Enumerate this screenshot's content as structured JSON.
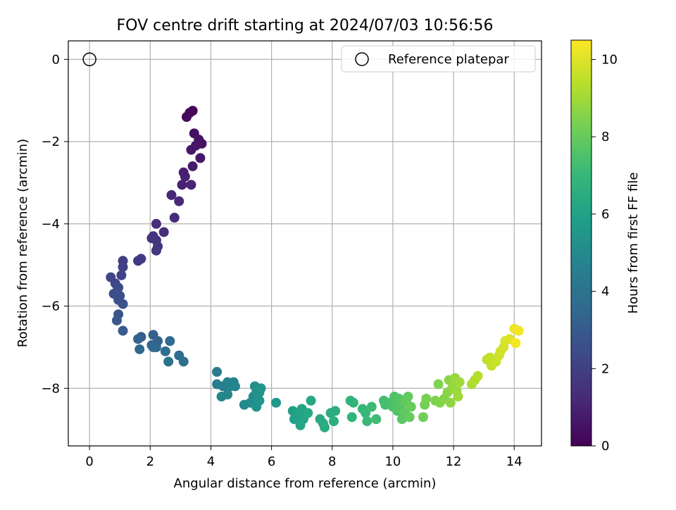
{
  "chart_data": {
    "type": "scatter",
    "title": "FOV centre drift starting at 2024/07/03 10:56:56",
    "xlabel": "Angular distance from reference (arcmin)",
    "ylabel": "Rotation from reference (arcmin)",
    "xlim": [
      -0.7,
      14.9
    ],
    "ylim": [
      -9.4,
      0.45
    ],
    "xticks": [
      0,
      2,
      4,
      6,
      8,
      10,
      12,
      14
    ],
    "yticks": [
      0,
      -2,
      -4,
      -6,
      -8
    ],
    "xtick_labels": [
      "0",
      "2",
      "4",
      "6",
      "8",
      "10",
      "12",
      "14"
    ],
    "ytick_labels": [
      "0",
      "−2",
      "−4",
      "−6",
      "−8"
    ],
    "grid": true,
    "legend": {
      "position": "top-right",
      "entries": [
        {
          "label": "Reference platepar",
          "marker": "open-circle"
        }
      ]
    },
    "reference_point": {
      "x": 0,
      "y": 0
    },
    "colorbar": {
      "label": "Hours from first FF file",
      "range": [
        0,
        10.5
      ],
      "ticks": [
        0,
        2,
        4,
        6,
        8,
        10
      ],
      "tick_labels": [
        "0",
        "2",
        "4",
        "6",
        "8",
        "10"
      ],
      "colormap": "viridis",
      "colors": [
        "#440154",
        "#482878",
        "#3e4989",
        "#31688e",
        "#26828e",
        "#1f9e89",
        "#35b779",
        "#6ece58",
        "#b5de2b",
        "#fde725"
      ]
    },
    "points": [
      {
        "x": 3.4,
        "y": -1.25,
        "t": 0.1
      },
      {
        "x": 3.3,
        "y": -1.3,
        "t": 0.15
      },
      {
        "x": 3.2,
        "y": -1.4,
        "t": 0.2
      },
      {
        "x": 3.45,
        "y": -1.8,
        "t": 0.4
      },
      {
        "x": 3.6,
        "y": -1.95,
        "t": 0.5
      },
      {
        "x": 3.7,
        "y": -2.05,
        "t": 0.55
      },
      {
        "x": 3.5,
        "y": -2.1,
        "t": 0.6
      },
      {
        "x": 3.35,
        "y": -2.2,
        "t": 0.65
      },
      {
        "x": 3.65,
        "y": -2.4,
        "t": 0.7
      },
      {
        "x": 3.4,
        "y": -2.6,
        "t": 0.8
      },
      {
        "x": 3.1,
        "y": -2.75,
        "t": 0.9
      },
      {
        "x": 3.15,
        "y": -2.85,
        "t": 0.95
      },
      {
        "x": 3.05,
        "y": -3.05,
        "t": 1.0
      },
      {
        "x": 3.35,
        "y": -3.05,
        "t": 1.05
      },
      {
        "x": 2.7,
        "y": -3.3,
        "t": 1.1
      },
      {
        "x": 2.95,
        "y": -3.45,
        "t": 1.2
      },
      {
        "x": 2.8,
        "y": -3.85,
        "t": 1.3
      },
      {
        "x": 2.2,
        "y": -4.0,
        "t": 1.4
      },
      {
        "x": 2.45,
        "y": -4.2,
        "t": 1.45
      },
      {
        "x": 2.1,
        "y": -4.3,
        "t": 1.5
      },
      {
        "x": 2.2,
        "y": -4.4,
        "t": 1.55
      },
      {
        "x": 2.05,
        "y": -4.35,
        "t": 1.6
      },
      {
        "x": 2.25,
        "y": -4.55,
        "t": 1.65
      },
      {
        "x": 2.2,
        "y": -4.65,
        "t": 1.7
      },
      {
        "x": 1.6,
        "y": -4.9,
        "t": 1.8
      },
      {
        "x": 1.7,
        "y": -4.85,
        "t": 1.85
      },
      {
        "x": 1.1,
        "y": -4.9,
        "t": 1.9
      },
      {
        "x": 1.1,
        "y": -5.05,
        "t": 2.0
      },
      {
        "x": 1.05,
        "y": -5.25,
        "t": 2.1
      },
      {
        "x": 0.7,
        "y": -5.3,
        "t": 2.2
      },
      {
        "x": 0.85,
        "y": -5.45,
        "t": 2.3
      },
      {
        "x": 0.95,
        "y": -5.55,
        "t": 2.4
      },
      {
        "x": 0.9,
        "y": -5.65,
        "t": 2.45
      },
      {
        "x": 0.8,
        "y": -5.7,
        "t": 2.5
      },
      {
        "x": 1.0,
        "y": -5.75,
        "t": 2.55
      },
      {
        "x": 0.95,
        "y": -5.85,
        "t": 2.6
      },
      {
        "x": 1.1,
        "y": -5.95,
        "t": 2.7
      },
      {
        "x": 0.95,
        "y": -6.2,
        "t": 2.8
      },
      {
        "x": 0.9,
        "y": -6.35,
        "t": 2.9
      },
      {
        "x": 1.1,
        "y": -6.6,
        "t": 3.0
      },
      {
        "x": 1.7,
        "y": -6.75,
        "t": 3.1
      },
      {
        "x": 2.1,
        "y": -6.7,
        "t": 3.2
      },
      {
        "x": 1.6,
        "y": -6.8,
        "t": 3.3
      },
      {
        "x": 2.25,
        "y": -6.85,
        "t": 3.35
      },
      {
        "x": 2.05,
        "y": -6.95,
        "t": 3.4
      },
      {
        "x": 2.2,
        "y": -7.0,
        "t": 3.45
      },
      {
        "x": 2.1,
        "y": -7.0,
        "t": 3.5
      },
      {
        "x": 1.65,
        "y": -7.05,
        "t": 3.55
      },
      {
        "x": 2.65,
        "y": -6.85,
        "t": 3.6
      },
      {
        "x": 2.5,
        "y": -7.1,
        "t": 3.7
      },
      {
        "x": 2.95,
        "y": -7.2,
        "t": 3.8
      },
      {
        "x": 3.1,
        "y": -7.35,
        "t": 3.9
      },
      {
        "x": 2.6,
        "y": -7.35,
        "t": 4.0
      },
      {
        "x": 4.2,
        "y": -7.6,
        "t": 4.4
      },
      {
        "x": 4.2,
        "y": -7.9,
        "t": 4.5
      },
      {
        "x": 4.4,
        "y": -7.95,
        "t": 4.55
      },
      {
        "x": 4.55,
        "y": -7.85,
        "t": 4.6
      },
      {
        "x": 4.65,
        "y": -7.95,
        "t": 4.65
      },
      {
        "x": 4.75,
        "y": -7.85,
        "t": 4.7
      },
      {
        "x": 4.8,
        "y": -7.95,
        "t": 4.75
      },
      {
        "x": 4.35,
        "y": -8.2,
        "t": 4.8
      },
      {
        "x": 4.55,
        "y": -8.15,
        "t": 4.85
      },
      {
        "x": 5.1,
        "y": -8.4,
        "t": 5.0
      },
      {
        "x": 5.3,
        "y": -8.35,
        "t": 5.05
      },
      {
        "x": 5.4,
        "y": -8.2,
        "t": 5.1
      },
      {
        "x": 5.45,
        "y": -7.95,
        "t": 5.15
      },
      {
        "x": 5.5,
        "y": -8.1,
        "t": 5.2
      },
      {
        "x": 5.55,
        "y": -8.25,
        "t": 5.25
      },
      {
        "x": 5.5,
        "y": -8.45,
        "t": 5.3
      },
      {
        "x": 5.6,
        "y": -8.1,
        "t": 5.35
      },
      {
        "x": 5.65,
        "y": -8.0,
        "t": 5.4
      },
      {
        "x": 5.6,
        "y": -8.3,
        "t": 5.45
      },
      {
        "x": 6.15,
        "y": -8.35,
        "t": 5.6
      },
      {
        "x": 6.7,
        "y": -8.55,
        "t": 5.9
      },
      {
        "x": 6.75,
        "y": -8.75,
        "t": 5.95
      },
      {
        "x": 6.9,
        "y": -8.6,
        "t": 6.0
      },
      {
        "x": 7.0,
        "y": -8.5,
        "t": 6.05
      },
      {
        "x": 7.1,
        "y": -8.65,
        "t": 6.1
      },
      {
        "x": 7.05,
        "y": -8.75,
        "t": 6.15
      },
      {
        "x": 6.95,
        "y": -8.9,
        "t": 6.2
      },
      {
        "x": 7.3,
        "y": -8.3,
        "t": 6.25
      },
      {
        "x": 7.2,
        "y": -8.6,
        "t": 6.3
      },
      {
        "x": 7.6,
        "y": -8.75,
        "t": 6.35
      },
      {
        "x": 7.7,
        "y": -8.85,
        "t": 6.4
      },
      {
        "x": 7.75,
        "y": -8.95,
        "t": 6.45
      },
      {
        "x": 7.95,
        "y": -8.6,
        "t": 6.5
      },
      {
        "x": 8.1,
        "y": -8.55,
        "t": 6.55
      },
      {
        "x": 8.05,
        "y": -8.8,
        "t": 6.6
      },
      {
        "x": 8.6,
        "y": -8.3,
        "t": 6.8
      },
      {
        "x": 8.7,
        "y": -8.35,
        "t": 6.85
      },
      {
        "x": 8.65,
        "y": -8.7,
        "t": 6.9
      },
      {
        "x": 9.0,
        "y": -8.5,
        "t": 7.0
      },
      {
        "x": 9.1,
        "y": -8.6,
        "t": 7.05
      },
      {
        "x": 9.15,
        "y": -8.8,
        "t": 7.1
      },
      {
        "x": 9.3,
        "y": -8.45,
        "t": 7.15
      },
      {
        "x": 9.45,
        "y": -8.75,
        "t": 7.2
      },
      {
        "x": 9.7,
        "y": -8.3,
        "t": 7.3
      },
      {
        "x": 9.75,
        "y": -8.4,
        "t": 7.35
      },
      {
        "x": 9.85,
        "y": -8.35,
        "t": 7.4
      },
      {
        "x": 10.0,
        "y": -8.45,
        "t": 7.45
      },
      {
        "x": 10.05,
        "y": -8.2,
        "t": 7.5
      },
      {
        "x": 10.1,
        "y": -8.35,
        "t": 7.55
      },
      {
        "x": 10.15,
        "y": -8.55,
        "t": 7.6
      },
      {
        "x": 10.2,
        "y": -8.25,
        "t": 7.65
      },
      {
        "x": 10.25,
        "y": -8.5,
        "t": 7.7
      },
      {
        "x": 10.3,
        "y": -8.75,
        "t": 7.75
      },
      {
        "x": 10.35,
        "y": -8.3,
        "t": 7.8
      },
      {
        "x": 10.4,
        "y": -8.6,
        "t": 7.85
      },
      {
        "x": 10.45,
        "y": -8.35,
        "t": 7.9
      },
      {
        "x": 10.5,
        "y": -8.2,
        "t": 7.95
      },
      {
        "x": 10.55,
        "y": -8.7,
        "t": 8.0
      },
      {
        "x": 10.6,
        "y": -8.45,
        "t": 8.05
      },
      {
        "x": 11.0,
        "y": -8.7,
        "t": 8.2
      },
      {
        "x": 11.05,
        "y": -8.4,
        "t": 8.25
      },
      {
        "x": 11.1,
        "y": -8.25,
        "t": 8.3
      },
      {
        "x": 11.4,
        "y": -8.3,
        "t": 8.4
      },
      {
        "x": 11.5,
        "y": -7.9,
        "t": 8.45
      },
      {
        "x": 11.55,
        "y": -8.35,
        "t": 8.5
      },
      {
        "x": 11.7,
        "y": -8.25,
        "t": 8.55
      },
      {
        "x": 11.8,
        "y": -8.1,
        "t": 8.6
      },
      {
        "x": 11.85,
        "y": -7.8,
        "t": 8.65
      },
      {
        "x": 11.9,
        "y": -8.35,
        "t": 8.7
      },
      {
        "x": 11.95,
        "y": -8.0,
        "t": 8.75
      },
      {
        "x": 12.0,
        "y": -7.9,
        "t": 8.8
      },
      {
        "x": 12.05,
        "y": -7.75,
        "t": 8.85
      },
      {
        "x": 12.1,
        "y": -8.05,
        "t": 8.9
      },
      {
        "x": 12.15,
        "y": -8.2,
        "t": 8.95
      },
      {
        "x": 12.2,
        "y": -7.85,
        "t": 9.0
      },
      {
        "x": 12.6,
        "y": -7.9,
        "t": 9.2
      },
      {
        "x": 12.7,
        "y": -7.8,
        "t": 9.25
      },
      {
        "x": 12.8,
        "y": -7.7,
        "t": 9.3
      },
      {
        "x": 13.1,
        "y": -7.3,
        "t": 9.5
      },
      {
        "x": 13.2,
        "y": -7.25,
        "t": 9.55
      },
      {
        "x": 13.25,
        "y": -7.45,
        "t": 9.6
      },
      {
        "x": 13.4,
        "y": -7.35,
        "t": 9.65
      },
      {
        "x": 13.5,
        "y": -7.2,
        "t": 9.7
      },
      {
        "x": 13.55,
        "y": -7.1,
        "t": 9.75
      },
      {
        "x": 13.65,
        "y": -7.0,
        "t": 9.8
      },
      {
        "x": 13.7,
        "y": -6.85,
        "t": 9.9
      },
      {
        "x": 13.85,
        "y": -6.8,
        "t": 10.0
      },
      {
        "x": 14.0,
        "y": -6.55,
        "t": 10.2
      },
      {
        "x": 14.15,
        "y": -6.6,
        "t": 10.3
      },
      {
        "x": 14.05,
        "y": -6.9,
        "t": 10.4
      }
    ]
  }
}
